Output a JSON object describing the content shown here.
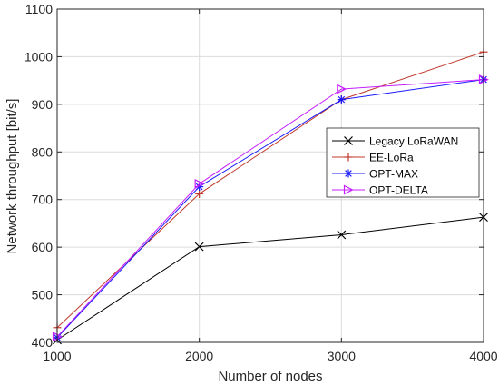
{
  "chart_data": {
    "type": "line",
    "xlabel": "Number of nodes",
    "ylabel": "Network throughput [bit/s]",
    "x": [
      1000,
      2000,
      3000,
      4000
    ],
    "xlim": [
      1000,
      4000
    ],
    "ylim": [
      400,
      1100
    ],
    "xticks": [
      "1000",
      "2000",
      "3000",
      "4000"
    ],
    "yticks": [
      "400",
      "500",
      "600",
      "700",
      "800",
      "900",
      "1000",
      "1100"
    ],
    "grid": true,
    "legend_position": "center-right",
    "series": [
      {
        "name": "Legacy LoRaWAN",
        "values": [
          405,
          601,
          626,
          663
        ],
        "color": "#000000",
        "marker": "x"
      },
      {
        "name": "EE-LoRa",
        "values": [
          431,
          712,
          910,
          1010
        ],
        "color": "#c0392b",
        "marker": "plus"
      },
      {
        "name": "OPT-MAX",
        "values": [
          410,
          727,
          910,
          952
        ],
        "color": "#1a1aff",
        "marker": "asterisk"
      },
      {
        "name": "OPT-DELTA",
        "values": [
          412,
          733,
          932,
          952
        ],
        "color": "#c51fff",
        "marker": "triangle-right"
      }
    ]
  }
}
